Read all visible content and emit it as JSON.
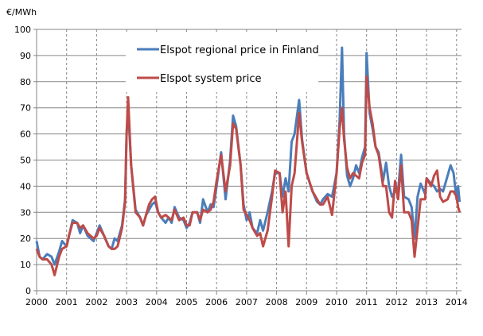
{
  "chart_data": {
    "type": "line",
    "title": "",
    "ylabel": "€/MWh",
    "xlabel": "",
    "ylim": [
      0,
      100
    ],
    "xlim": [
      2000,
      2014
    ],
    "yticks": [
      0,
      10,
      20,
      30,
      40,
      50,
      60,
      70,
      80,
      90,
      100
    ],
    "xticks": [
      "2000",
      "2001",
      "2002",
      "2003",
      "2004",
      "2005",
      "2006",
      "2007",
      "2008",
      "2009",
      "2010",
      "2011",
      "2012",
      "2013",
      "2014"
    ],
    "grid": {
      "horizontal": "solid",
      "vertical": "dashed"
    },
    "legend_position": "top-left inside",
    "series": [
      {
        "name": "Elspot regional price in Finland",
        "color": "#4A7EBB",
        "x": [
          2000.0,
          2000.1,
          2000.2,
          2000.35,
          2000.5,
          2000.6,
          2000.75,
          2000.85,
          2001.0,
          2001.1,
          2001.2,
          2001.35,
          2001.45,
          2001.55,
          2001.7,
          2001.9,
          2002.0,
          2002.1,
          2002.25,
          2002.4,
          2002.5,
          2002.6,
          2002.7,
          2002.85,
          2002.95,
          2003.0,
          2003.05,
          2003.15,
          2003.3,
          2003.45,
          2003.55,
          2003.65,
          2003.75,
          2003.85,
          2003.95,
          2004.05,
          2004.15,
          2004.3,
          2004.4,
          2004.5,
          2004.6,
          2004.75,
          2004.9,
          2005.0,
          2005.1,
          2005.2,
          2005.35,
          2005.45,
          2005.55,
          2005.7,
          2005.8,
          2005.9,
          2006.0,
          2006.15,
          2006.3,
          2006.45,
          2006.55,
          2006.65,
          2006.8,
          2006.9,
          2007.0,
          2007.1,
          2007.2,
          2007.35,
          2007.45,
          2007.55,
          2007.7,
          2007.85,
          2007.95,
          2008.1,
          2008.2,
          2008.3,
          2008.4,
          2008.5,
          2008.6,
          2008.75,
          2008.85,
          2009.0,
          2009.2,
          2009.35,
          2009.45,
          2009.55,
          2009.7,
          2009.85,
          2010.0,
          2010.1,
          2010.18,
          2010.25,
          2010.35,
          2010.45,
          2010.55,
          2010.65,
          2010.75,
          2010.85,
          2010.95,
          2011.0,
          2011.1,
          2011.2,
          2011.3,
          2011.4,
          2011.55,
          2011.65,
          2011.75,
          2011.85,
          2011.95,
          2012.05,
          2012.15,
          2012.25,
          2012.4,
          2012.5,
          2012.6,
          2012.7,
          2012.8,
          2012.95,
          2013.0,
          2013.15,
          2013.25,
          2013.35,
          2013.45,
          2013.55,
          2013.7,
          2013.8,
          2013.9,
          2014.0,
          2014.05,
          2014.1
        ],
        "y": [
          19,
          13,
          12,
          14,
          13,
          10,
          15,
          19,
          17,
          22,
          27,
          26,
          22,
          25,
          21,
          19,
          22,
          25,
          21,
          17,
          16,
          20,
          19,
          25,
          35,
          60,
          70,
          48,
          31,
          28,
          25,
          29,
          31,
          33,
          34,
          30,
          28,
          26,
          28,
          26,
          32,
          28,
          27,
          24,
          26,
          30,
          30,
          26,
          35,
          30,
          33,
          32,
          40,
          53,
          35,
          50,
          67,
          63,
          48,
          33,
          27,
          30,
          24,
          22,
          27,
          23,
          30,
          38,
          45,
          45,
          36,
          43,
          38,
          57,
          60,
          73,
          58,
          45,
          38,
          34,
          33,
          35,
          37,
          36,
          45,
          65,
          93,
          60,
          44,
          40,
          43,
          48,
          45,
          51,
          55,
          91,
          68,
          62,
          55,
          53,
          42,
          49,
          40,
          36,
          38,
          38,
          52,
          36,
          35,
          32,
          20,
          36,
          41,
          37,
          43,
          41,
          40,
          38,
          39,
          38,
          44,
          48,
          45,
          35,
          40,
          34
        ]
      },
      {
        "name": "Elspot system price",
        "color": "#BE4B48",
        "x": [
          2000.0,
          2000.1,
          2000.2,
          2000.35,
          2000.5,
          2000.6,
          2000.75,
          2000.85,
          2001.0,
          2001.1,
          2001.2,
          2001.35,
          2001.45,
          2001.55,
          2001.7,
          2001.9,
          2002.0,
          2002.1,
          2002.25,
          2002.4,
          2002.5,
          2002.6,
          2002.7,
          2002.85,
          2002.95,
          2003.0,
          2003.05,
          2003.15,
          2003.3,
          2003.45,
          2003.55,
          2003.65,
          2003.75,
          2003.85,
          2003.95,
          2004.05,
          2004.15,
          2004.3,
          2004.4,
          2004.5,
          2004.6,
          2004.75,
          2004.9,
          2005.0,
          2005.1,
          2005.2,
          2005.35,
          2005.45,
          2005.55,
          2005.7,
          2005.8,
          2005.9,
          2006.0,
          2006.15,
          2006.3,
          2006.45,
          2006.55,
          2006.65,
          2006.8,
          2006.9,
          2007.0,
          2007.1,
          2007.2,
          2007.35,
          2007.45,
          2007.55,
          2007.7,
          2007.85,
          2007.95,
          2008.1,
          2008.2,
          2008.3,
          2008.4,
          2008.5,
          2008.6,
          2008.75,
          2008.85,
          2009.0,
          2009.2,
          2009.35,
          2009.45,
          2009.55,
          2009.7,
          2009.85,
          2010.0,
          2010.1,
          2010.18,
          2010.25,
          2010.35,
          2010.45,
          2010.55,
          2010.65,
          2010.75,
          2010.85,
          2010.95,
          2011.0,
          2011.1,
          2011.2,
          2011.3,
          2011.4,
          2011.55,
          2011.65,
          2011.75,
          2011.85,
          2011.95,
          2012.05,
          2012.15,
          2012.25,
          2012.4,
          2012.5,
          2012.6,
          2012.7,
          2012.8,
          2012.95,
          2013.0,
          2013.15,
          2013.25,
          2013.35,
          2013.45,
          2013.55,
          2013.7,
          2013.8,
          2013.9,
          2014.0,
          2014.05,
          2014.1
        ],
        "y": [
          16,
          13,
          12,
          12,
          10,
          6,
          13,
          16,
          17,
          22,
          26,
          26,
          24,
          25,
          22,
          20,
          21,
          24,
          21,
          17,
          16,
          16,
          17,
          24,
          34,
          60,
          74,
          48,
          30,
          28,
          25,
          29,
          33,
          35,
          36,
          30,
          28,
          29,
          28,
          27,
          31,
          27,
          28,
          25,
          25,
          30,
          30,
          27,
          31,
          30,
          31,
          34,
          42,
          52,
          38,
          48,
          64,
          62,
          48,
          31,
          29,
          27,
          24,
          21,
          22,
          17,
          23,
          36,
          46,
          45,
          30,
          38,
          17,
          40,
          45,
          68,
          57,
          45,
          38,
          35,
          33,
          33,
          36,
          29,
          45,
          62,
          70,
          58,
          47,
          43,
          45,
          44,
          43,
          49,
          52,
          82,
          70,
          64,
          55,
          52,
          40,
          40,
          30,
          28,
          42,
          35,
          48,
          30,
          30,
          27,
          13,
          24,
          35,
          35,
          43,
          40,
          44,
          46,
          36,
          34,
          35,
          38,
          38,
          36,
          32,
          30
        ]
      }
    ]
  }
}
